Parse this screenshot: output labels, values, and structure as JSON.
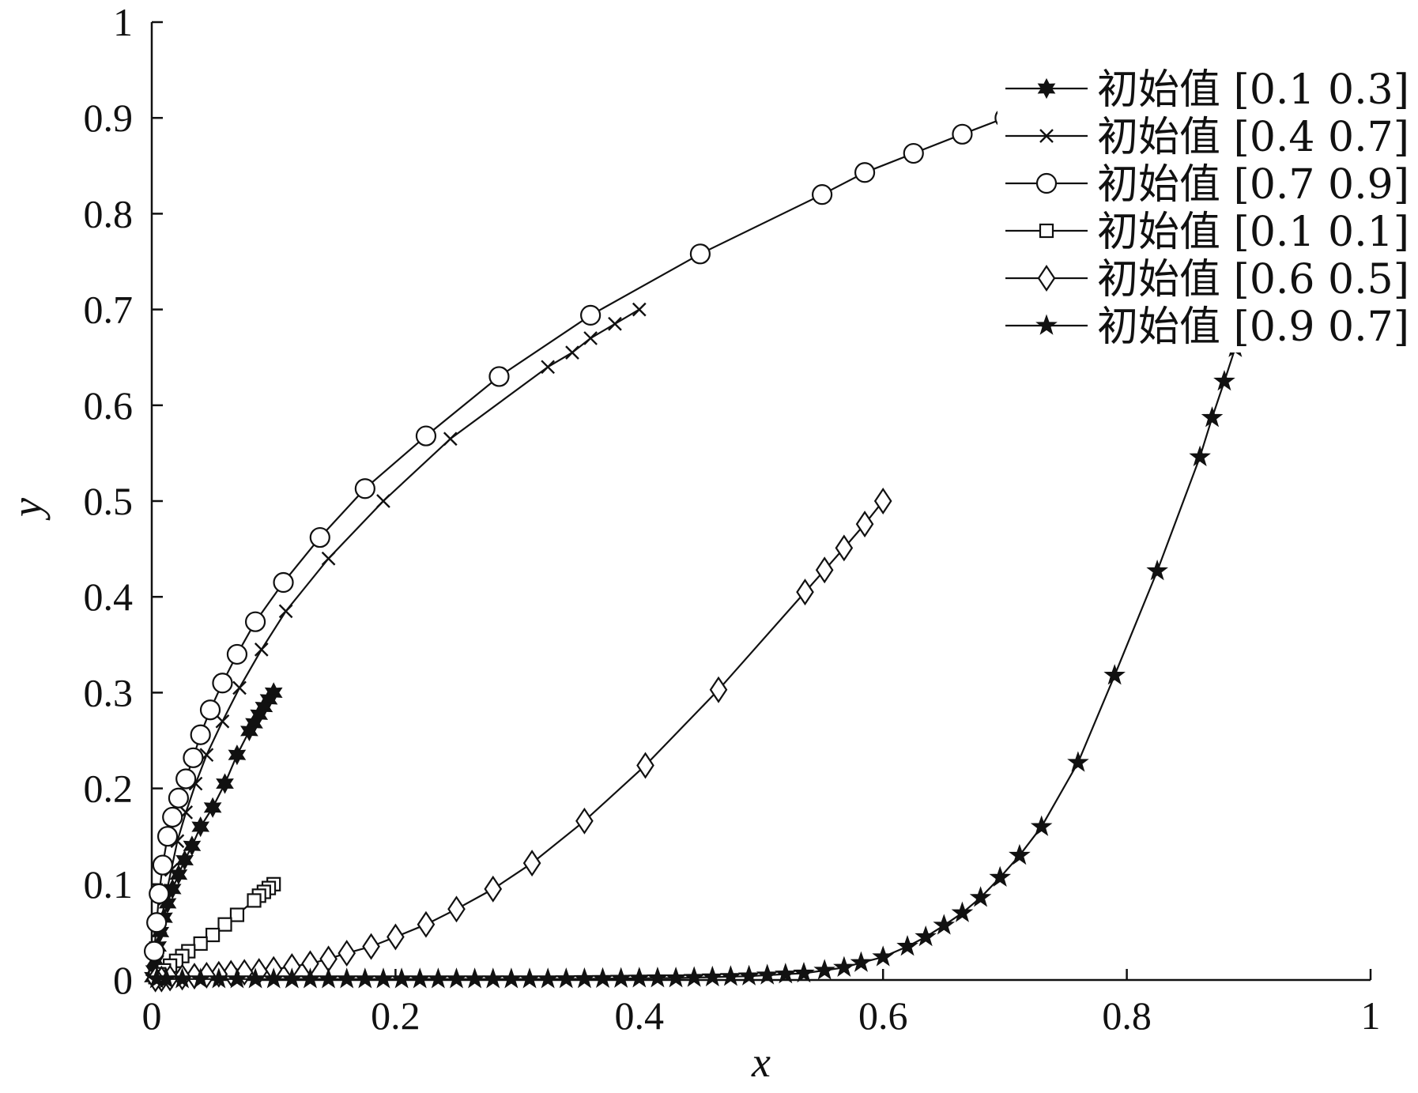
{
  "chart_data": {
    "type": "line",
    "xlabel": "x",
    "ylabel": "y",
    "xlim": [
      0,
      1
    ],
    "ylim": [
      0,
      1
    ],
    "xticks": [
      "0",
      "0.2",
      "0.4",
      "0.6",
      "0.8",
      "1"
    ],
    "yticks": [
      "0",
      "0.1",
      "0.2",
      "0.3",
      "0.4",
      "0.5",
      "0.6",
      "0.7",
      "0.8",
      "0.9",
      "1"
    ],
    "grid": false,
    "legend": "top-right",
    "series": [
      {
        "name": "初始值 [0.1 0.3]",
        "marker": "hexagram",
        "x": [
          0.1,
          0.096,
          0.092,
          0.088,
          0.084,
          0.08,
          0.07,
          0.06,
          0.05,
          0.04,
          0.033,
          0.027,
          0.022,
          0.017,
          0.013,
          0.01,
          0.007,
          0.005,
          0.003,
          0.002,
          0.001
        ],
        "y": [
          0.3,
          0.293,
          0.285,
          0.277,
          0.268,
          0.26,
          0.235,
          0.205,
          0.18,
          0.16,
          0.14,
          0.125,
          0.11,
          0.095,
          0.08,
          0.065,
          0.05,
          0.035,
          0.02,
          0.01,
          0.003
        ]
      },
      {
        "name": "初始值 [0.4 0.7]",
        "marker": "x",
        "x": [
          0.4,
          0.38,
          0.36,
          0.345,
          0.325,
          0.245,
          0.19,
          0.145,
          0.11,
          0.09,
          0.072,
          0.058,
          0.045,
          0.036,
          0.028,
          0.021,
          0.016,
          0.011,
          0.007,
          0.004,
          0.002
        ],
        "y": [
          0.7,
          0.685,
          0.67,
          0.655,
          0.64,
          0.565,
          0.5,
          0.44,
          0.385,
          0.345,
          0.305,
          0.27,
          0.235,
          0.205,
          0.175,
          0.145,
          0.115,
          0.085,
          0.055,
          0.03,
          0.01
        ]
      },
      {
        "name": "初始值 [0.7 0.9]",
        "marker": "circle",
        "x": [
          0.7,
          0.665,
          0.625,
          0.585,
          0.55,
          0.45,
          0.36,
          0.285,
          0.225,
          0.175,
          0.138,
          0.108,
          0.085,
          0.07,
          0.058,
          0.048,
          0.04,
          0.034,
          0.028,
          0.022,
          0.017,
          0.013,
          0.009,
          0.006,
          0.004,
          0.002
        ],
        "y": [
          0.9,
          0.883,
          0.863,
          0.843,
          0.82,
          0.758,
          0.694,
          0.63,
          0.568,
          0.513,
          0.462,
          0.415,
          0.374,
          0.34,
          0.31,
          0.282,
          0.256,
          0.232,
          0.21,
          0.19,
          0.17,
          0.15,
          0.12,
          0.09,
          0.06,
          0.03
        ]
      },
      {
        "name": "初始值 [0.1 0.1]",
        "marker": "square",
        "x": [
          0.1,
          0.096,
          0.092,
          0.088,
          0.084,
          0.07,
          0.06,
          0.05,
          0.04,
          0.03,
          0.025,
          0.02,
          0.015,
          0.01,
          0.006,
          0.003
        ],
        "y": [
          0.1,
          0.096,
          0.092,
          0.088,
          0.083,
          0.068,
          0.058,
          0.047,
          0.038,
          0.03,
          0.025,
          0.02,
          0.015,
          0.01,
          0.006,
          0.003
        ]
      },
      {
        "name": "初始值 [0.6 0.5]",
        "marker": "diamond",
        "x": [
          0.6,
          0.585,
          0.568,
          0.552,
          0.536,
          0.465,
          0.405,
          0.355,
          0.312,
          0.28,
          0.25,
          0.225,
          0.2,
          0.18,
          0.16,
          0.145,
          0.13,
          0.115,
          0.1,
          0.088,
          0.076,
          0.065,
          0.055,
          0.045,
          0.035,
          0.025,
          0.015,
          0.008,
          0.003
        ],
        "y": [
          0.5,
          0.476,
          0.451,
          0.428,
          0.405,
          0.303,
          0.224,
          0.166,
          0.122,
          0.095,
          0.074,
          0.058,
          0.045,
          0.035,
          0.028,
          0.022,
          0.017,
          0.014,
          0.011,
          0.009,
          0.008,
          0.007,
          0.006,
          0.005,
          0.004,
          0.003,
          0.002,
          0.001,
          0.001
        ]
      },
      {
        "name": "初始值 [0.9 0.7]",
        "marker": "pentagram",
        "x": [
          0.889,
          0.88,
          0.87,
          0.86,
          0.825,
          0.79,
          0.76,
          0.73,
          0.712,
          0.696,
          0.68,
          0.665,
          0.65,
          0.635,
          0.62,
          0.6,
          0.582,
          0.568,
          0.552,
          0.535,
          0.52,
          0.505,
          0.49,
          0.475,
          0.46,
          0.445,
          0.43,
          0.415,
          0.4,
          0.385,
          0.37,
          0.355,
          0.34,
          0.325,
          0.31,
          0.295,
          0.28,
          0.265,
          0.25,
          0.235,
          0.22,
          0.205,
          0.19,
          0.175,
          0.16,
          0.145,
          0.13,
          0.115,
          0.1,
          0.085,
          0.07,
          0.055,
          0.04,
          0.025,
          0.012,
          0.004
        ],
        "y": [
          0.66,
          0.625,
          0.587,
          0.546,
          0.427,
          0.318,
          0.227,
          0.16,
          0.13,
          0.107,
          0.086,
          0.07,
          0.057,
          0.045,
          0.035,
          0.024,
          0.018,
          0.013,
          0.01,
          0.007,
          0.006,
          0.005,
          0.004,
          0.0035,
          0.003,
          0.0025,
          0.002,
          0.002,
          0.0018,
          0.0016,
          0.0014,
          0.0012,
          0.0011,
          0.001,
          0.001,
          0.001,
          0.001,
          0.001,
          0.001,
          0.001,
          0.001,
          0.001,
          0.001,
          0.001,
          0.001,
          0.001,
          0.001,
          0.001,
          0.001,
          0.001,
          0.001,
          0.001,
          0.001,
          0.001,
          0.001,
          0.001
        ]
      }
    ]
  }
}
